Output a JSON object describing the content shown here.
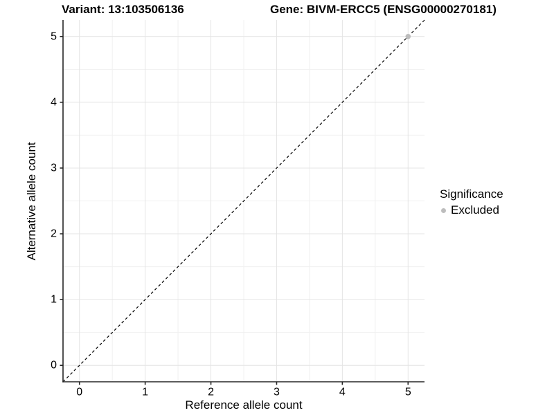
{
  "header": {
    "variant_title": "Variant: 13:103506136",
    "gene_title": "Gene: BIVM-ERCC5 (ENSG00000270181)"
  },
  "legend": {
    "title": "Significance",
    "items": [
      {
        "label": "Excluded",
        "color": "#bdbdbd"
      }
    ]
  },
  "chart_data": {
    "type": "scatter",
    "title_left": "Variant: 13:103506136",
    "title_right": "Gene: BIVM-ERCC5 (ENSG00000270181)",
    "xlabel": "Reference allele count",
    "ylabel": "Alternative allele count",
    "xlim": [
      -0.25,
      5.25
    ],
    "ylim": [
      -0.25,
      5.25
    ],
    "x_ticks": [
      0,
      1,
      2,
      3,
      4,
      5
    ],
    "y_ticks": [
      0,
      1,
      2,
      3,
      4,
      5
    ],
    "x_minor": [
      0.5,
      1.5,
      2.5,
      3.5,
      4.5
    ],
    "y_minor": [
      0.5,
      1.5,
      2.5,
      3.5,
      4.5
    ],
    "grid": true,
    "legend_position": "right",
    "identity_line": {
      "slope": 1,
      "intercept": 0,
      "linetype": "dashed",
      "color": "#000000"
    },
    "series": [
      {
        "name": "Excluded",
        "color": "#bdbdbd",
        "points": [
          {
            "x": 5,
            "y": 5
          }
        ]
      }
    ]
  }
}
